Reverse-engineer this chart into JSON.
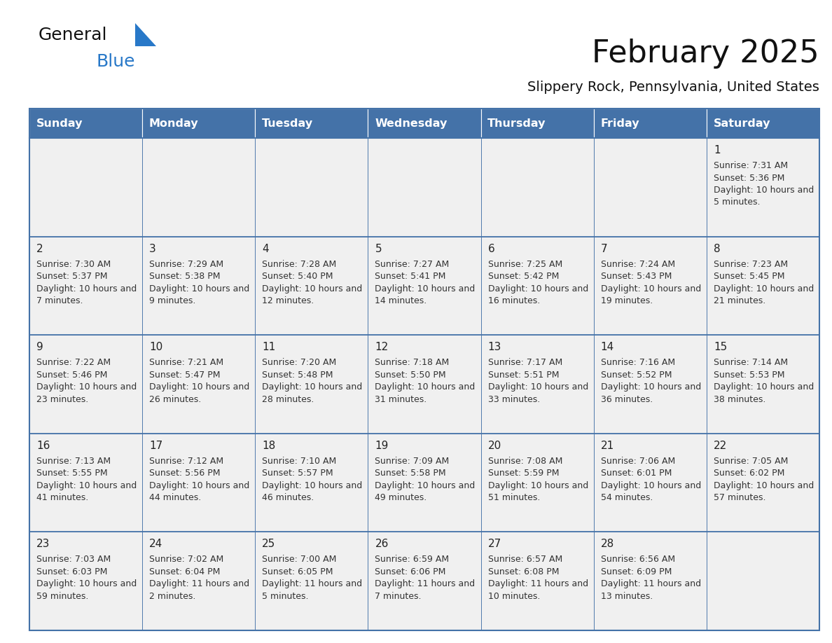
{
  "title": "February 2025",
  "subtitle": "Slippery Rock, Pennsylvania, United States",
  "header_bg": "#4472a8",
  "header_text_color": "#ffffff",
  "cell_bg": "#f0f0f0",
  "border_color": "#4472a8",
  "text_color": "#333333",
  "days_of_week": [
    "Sunday",
    "Monday",
    "Tuesday",
    "Wednesday",
    "Thursday",
    "Friday",
    "Saturday"
  ],
  "calendar_data": [
    [
      null,
      null,
      null,
      null,
      null,
      null,
      {
        "day": "1",
        "sunrise": "7:31 AM",
        "sunset": "5:36 PM",
        "daylight1": "10 hours and",
        "daylight2": "5 minutes."
      }
    ],
    [
      {
        "day": "2",
        "sunrise": "7:30 AM",
        "sunset": "5:37 PM",
        "daylight1": "10 hours and",
        "daylight2": "7 minutes."
      },
      {
        "day": "3",
        "sunrise": "7:29 AM",
        "sunset": "5:38 PM",
        "daylight1": "10 hours and",
        "daylight2": "9 minutes."
      },
      {
        "day": "4",
        "sunrise": "7:28 AM",
        "sunset": "5:40 PM",
        "daylight1": "10 hours and",
        "daylight2": "12 minutes."
      },
      {
        "day": "5",
        "sunrise": "7:27 AM",
        "sunset": "5:41 PM",
        "daylight1": "10 hours and",
        "daylight2": "14 minutes."
      },
      {
        "day": "6",
        "sunrise": "7:25 AM",
        "sunset": "5:42 PM",
        "daylight1": "10 hours and",
        "daylight2": "16 minutes."
      },
      {
        "day": "7",
        "sunrise": "7:24 AM",
        "sunset": "5:43 PM",
        "daylight1": "10 hours and",
        "daylight2": "19 minutes."
      },
      {
        "day": "8",
        "sunrise": "7:23 AM",
        "sunset": "5:45 PM",
        "daylight1": "10 hours and",
        "daylight2": "21 minutes."
      }
    ],
    [
      {
        "day": "9",
        "sunrise": "7:22 AM",
        "sunset": "5:46 PM",
        "daylight1": "10 hours and",
        "daylight2": "23 minutes."
      },
      {
        "day": "10",
        "sunrise": "7:21 AM",
        "sunset": "5:47 PM",
        "daylight1": "10 hours and",
        "daylight2": "26 minutes."
      },
      {
        "day": "11",
        "sunrise": "7:20 AM",
        "sunset": "5:48 PM",
        "daylight1": "10 hours and",
        "daylight2": "28 minutes."
      },
      {
        "day": "12",
        "sunrise": "7:18 AM",
        "sunset": "5:50 PM",
        "daylight1": "10 hours and",
        "daylight2": "31 minutes."
      },
      {
        "day": "13",
        "sunrise": "7:17 AM",
        "sunset": "5:51 PM",
        "daylight1": "10 hours and",
        "daylight2": "33 minutes."
      },
      {
        "day": "14",
        "sunrise": "7:16 AM",
        "sunset": "5:52 PM",
        "daylight1": "10 hours and",
        "daylight2": "36 minutes."
      },
      {
        "day": "15",
        "sunrise": "7:14 AM",
        "sunset": "5:53 PM",
        "daylight1": "10 hours and",
        "daylight2": "38 minutes."
      }
    ],
    [
      {
        "day": "16",
        "sunrise": "7:13 AM",
        "sunset": "5:55 PM",
        "daylight1": "10 hours and",
        "daylight2": "41 minutes."
      },
      {
        "day": "17",
        "sunrise": "7:12 AM",
        "sunset": "5:56 PM",
        "daylight1": "10 hours and",
        "daylight2": "44 minutes."
      },
      {
        "day": "18",
        "sunrise": "7:10 AM",
        "sunset": "5:57 PM",
        "daylight1": "10 hours and",
        "daylight2": "46 minutes."
      },
      {
        "day": "19",
        "sunrise": "7:09 AM",
        "sunset": "5:58 PM",
        "daylight1": "10 hours and",
        "daylight2": "49 minutes."
      },
      {
        "day": "20",
        "sunrise": "7:08 AM",
        "sunset": "5:59 PM",
        "daylight1": "10 hours and",
        "daylight2": "51 minutes."
      },
      {
        "day": "21",
        "sunrise": "7:06 AM",
        "sunset": "6:01 PM",
        "daylight1": "10 hours and",
        "daylight2": "54 minutes."
      },
      {
        "day": "22",
        "sunrise": "7:05 AM",
        "sunset": "6:02 PM",
        "daylight1": "10 hours and",
        "daylight2": "57 minutes."
      }
    ],
    [
      {
        "day": "23",
        "sunrise": "7:03 AM",
        "sunset": "6:03 PM",
        "daylight1": "10 hours and",
        "daylight2": "59 minutes."
      },
      {
        "day": "24",
        "sunrise": "7:02 AM",
        "sunset": "6:04 PM",
        "daylight1": "11 hours and",
        "daylight2": "2 minutes."
      },
      {
        "day": "25",
        "sunrise": "7:00 AM",
        "sunset": "6:05 PM",
        "daylight1": "11 hours and",
        "daylight2": "5 minutes."
      },
      {
        "day": "26",
        "sunrise": "6:59 AM",
        "sunset": "6:06 PM",
        "daylight1": "11 hours and",
        "daylight2": "7 minutes."
      },
      {
        "day": "27",
        "sunrise": "6:57 AM",
        "sunset": "6:08 PM",
        "daylight1": "11 hours and",
        "daylight2": "10 minutes."
      },
      {
        "day": "28",
        "sunrise": "6:56 AM",
        "sunset": "6:09 PM",
        "daylight1": "11 hours and",
        "daylight2": "13 minutes."
      },
      null
    ]
  ]
}
